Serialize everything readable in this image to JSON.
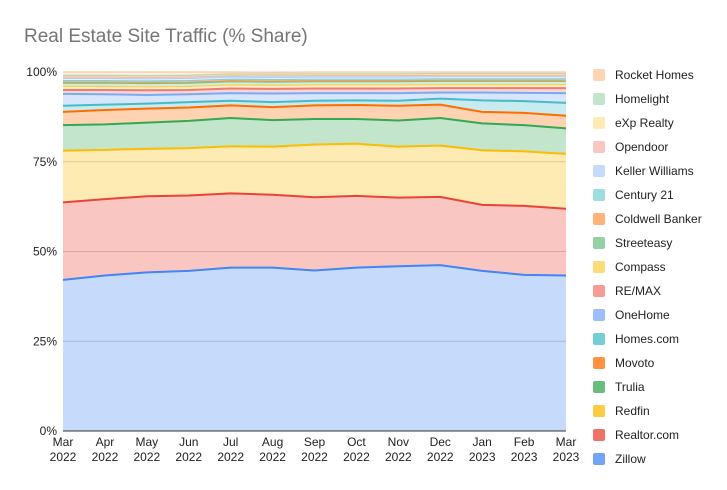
{
  "chart_data": {
    "type": "area",
    "stacked": true,
    "title": "Real Estate Site Traffic (% Share)",
    "xlabel": "",
    "ylabel": "",
    "ylim": [
      0,
      100
    ],
    "yticks": [
      "0%",
      "25%",
      "50%",
      "75%",
      "100%"
    ],
    "grid": true,
    "legend": "right",
    "categories": [
      [
        "Mar",
        "2022"
      ],
      [
        "Apr",
        "2022"
      ],
      [
        "May",
        "2022"
      ],
      [
        "Jun",
        "2022"
      ],
      [
        "Jul",
        "2022"
      ],
      [
        "Aug",
        "2022"
      ],
      [
        "Sep",
        "2022"
      ],
      [
        "Oct",
        "2022"
      ],
      [
        "Nov",
        "2022"
      ],
      [
        "Dec",
        "2022"
      ],
      [
        "Jan",
        "2023"
      ],
      [
        "Feb",
        "2023"
      ],
      [
        "Mar",
        "2023"
      ]
    ],
    "series": [
      {
        "name": "Zillow",
        "color": "#4285f4",
        "values": [
          42.1,
          43.3,
          44.2,
          44.6,
          45.5,
          45.5,
          44.7,
          45.5,
          45.9,
          46.2,
          44.6,
          43.5,
          43.3
        ]
      },
      {
        "name": "Realtor.com",
        "color": "#ea4335",
        "values": [
          21.6,
          21.3,
          21.2,
          21.0,
          20.7,
          20.3,
          20.4,
          20.0,
          19.1,
          19.0,
          18.4,
          19.2,
          18.6
        ]
      },
      {
        "name": "Redfin",
        "color": "#fbbc04",
        "values": [
          14.4,
          13.7,
          13.2,
          13.2,
          13.1,
          13.4,
          14.7,
          14.5,
          14.2,
          14.3,
          15.2,
          15.2,
          15.3
        ]
      },
      {
        "name": "Trulia",
        "color": "#34a853",
        "values": [
          7.1,
          7.1,
          7.3,
          7.6,
          7.9,
          7.4,
          7.1,
          6.9,
          7.3,
          7.7,
          7.5,
          7.3,
          7.1
        ]
      },
      {
        "name": "Movoto",
        "color": "#ff6d01",
        "values": [
          3.7,
          4.0,
          3.9,
          3.7,
          3.5,
          3.6,
          3.8,
          3.9,
          4.1,
          3.7,
          3.2,
          3.4,
          3.5
        ]
      },
      {
        "name": "Homes.com",
        "color": "#46bdc6",
        "values": [
          1.7,
          1.5,
          1.4,
          1.5,
          1.3,
          1.4,
          1.3,
          1.3,
          1.4,
          1.7,
          3.2,
          3.3,
          3.6
        ]
      },
      {
        "name": "OneHome",
        "color": "#7baaf7",
        "values": [
          3.3,
          2.9,
          2.4,
          2.2,
          2.1,
          2.4,
          2.1,
          2.0,
          2.1,
          1.7,
          2.2,
          2.3,
          2.7
        ]
      },
      {
        "name": "RE/MAX",
        "color": "#f07b72",
        "values": [
          1.1,
          1.2,
          1.3,
          1.2,
          1.3,
          1.3,
          1.3,
          1.3,
          1.3,
          1.2,
          1.2,
          1.3,
          1.4
        ]
      },
      {
        "name": "Compass",
        "color": "#fcd04f",
        "values": [
          1.0,
          1.0,
          1.0,
          1.0,
          1.0,
          1.0,
          1.0,
          1.0,
          1.0,
          1.0,
          1.0,
          1.0,
          1.0
        ]
      },
      {
        "name": "Streeteasy",
        "color": "#71c287",
        "values": [
          0.9,
          0.9,
          0.9,
          0.9,
          0.9,
          0.9,
          0.9,
          0.9,
          0.9,
          0.9,
          0.9,
          0.9,
          0.9
        ]
      },
      {
        "name": "Coldwell Banker",
        "color": "#ff994d",
        "values": [
          0.3,
          0.3,
          0.3,
          0.3,
          0.3,
          0.3,
          0.3,
          0.3,
          0.3,
          0.3,
          0.3,
          0.3,
          0.3
        ]
      },
      {
        "name": "Century 21",
        "color": "#7ed1d7",
        "values": [
          0.4,
          0.4,
          0.4,
          0.4,
          0.4,
          0.4,
          0.4,
          0.4,
          0.4,
          0.4,
          0.4,
          0.4,
          0.4
        ]
      },
      {
        "name": "Keller Williams",
        "color": "#b3cefb",
        "values": [
          0.6,
          0.6,
          0.6,
          0.6,
          0.6,
          0.6,
          0.6,
          0.6,
          0.6,
          0.6,
          0.6,
          0.6,
          0.6
        ]
      },
      {
        "name": "Opendoor",
        "color": "#f7b4ae",
        "values": [
          0.4,
          0.4,
          0.4,
          0.4,
          0.4,
          0.4,
          0.4,
          0.4,
          0.4,
          0.4,
          0.4,
          0.4,
          0.4
        ]
      },
      {
        "name": "eXp Realty",
        "color": "#fde49b",
        "values": [
          0.3,
          0.3,
          0.3,
          0.3,
          0.3,
          0.3,
          0.3,
          0.3,
          0.3,
          0.3,
          0.3,
          0.3,
          0.3
        ]
      },
      {
        "name": "Homelight",
        "color": "#aedcba",
        "values": [
          0.2,
          0.2,
          0.2,
          0.2,
          0.2,
          0.2,
          0.2,
          0.2,
          0.2,
          0.2,
          0.2,
          0.2,
          0.2
        ]
      },
      {
        "name": "Rocket Homes",
        "color": "#ffc599",
        "values": [
          0.9,
          0.9,
          1.0,
          0.9,
          0.5,
          0.5,
          0.5,
          0.5,
          0.5,
          0.4,
          0.4,
          0.4,
          0.4
        ]
      }
    ]
  }
}
